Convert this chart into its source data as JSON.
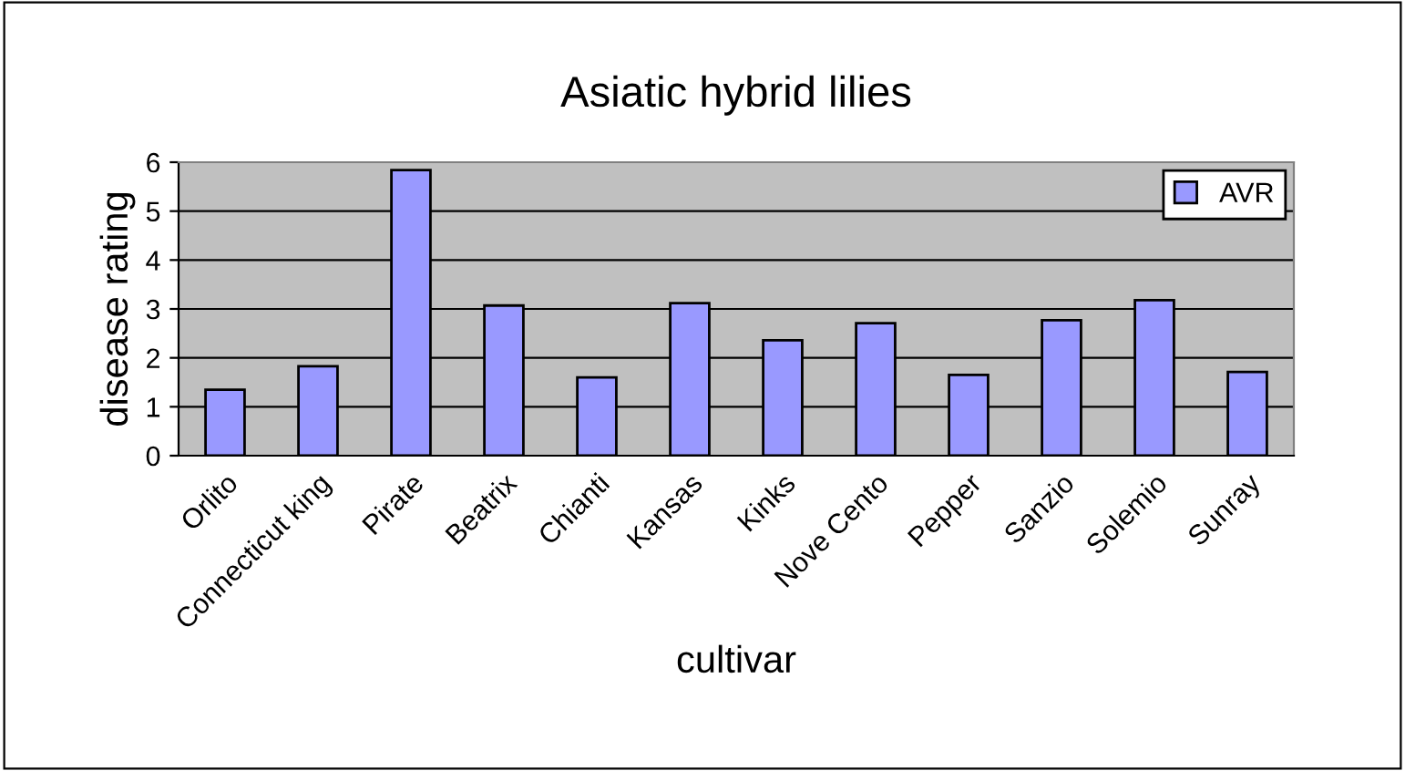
{
  "chart_data": {
    "type": "bar",
    "title": "Asiatic hybrid lilies",
    "xlabel": "cultivar",
    "ylabel": "disease rating",
    "categories": [
      "Orlito",
      "Connecticut king",
      "Pirate",
      "Beatrix",
      "Chianti",
      "Kansas",
      "Kinks",
      "Nove Cento",
      "Pepper",
      "Sanzio",
      "Solemio",
      "Sunray"
    ],
    "series": [
      {
        "name": "AVR",
        "color": "#9999ff",
        "values": [
          1.35,
          1.83,
          5.84,
          3.07,
          1.6,
          3.12,
          2.36,
          2.71,
          1.65,
          2.77,
          3.18,
          1.71
        ]
      }
    ],
    "ylim": [
      0,
      6
    ],
    "yticks": [
      0,
      1,
      2,
      3,
      4,
      5,
      6
    ],
    "grid": "y",
    "legend": "top right"
  }
}
